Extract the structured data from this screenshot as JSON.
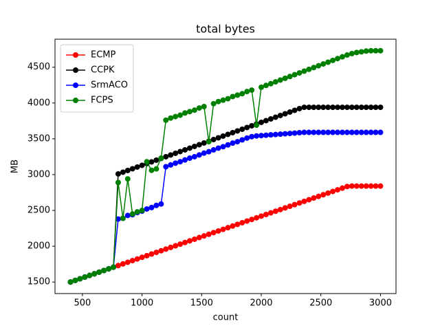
{
  "chart_data": {
    "type": "line",
    "title": "total bytes",
    "x_label": "count",
    "y_label": "MB",
    "x": [
      400,
      440,
      480,
      520,
      560,
      600,
      640,
      680,
      720,
      760,
      800,
      840,
      880,
      920,
      960,
      1000,
      1040,
      1080,
      1120,
      1160,
      1200,
      1240,
      1280,
      1320,
      1360,
      1400,
      1440,
      1480,
      1520,
      1560,
      1600,
      1640,
      1680,
      1720,
      1760,
      1800,
      1840,
      1880,
      1920,
      1960,
      2000,
      2040,
      2080,
      2120,
      2160,
      2200,
      2240,
      2280,
      2320,
      2360,
      2400,
      2440,
      2480,
      2520,
      2560,
      2600,
      2640,
      2680,
      2720,
      2760,
      2800,
      2840,
      2880,
      2920,
      2960,
      3000
    ],
    "series": [
      {
        "name": "ECMP",
        "color": "#ff0000",
        "values": [
          1500,
          1523,
          1546,
          1569,
          1592,
          1615,
          1638,
          1661,
          1684,
          1707,
          1730,
          1753,
          1776,
          1799,
          1822,
          1845,
          1868,
          1891,
          1914,
          1937,
          1960,
          1983,
          2006,
          2029,
          2052,
          2075,
          2098,
          2121,
          2144,
          2167,
          2190,
          2213,
          2236,
          2259,
          2282,
          2305,
          2328,
          2351,
          2374,
          2397,
          2420,
          2443,
          2466,
          2489,
          2512,
          2535,
          2558,
          2581,
          2604,
          2627,
          2650,
          2673,
          2696,
          2719,
          2742,
          2765,
          2788,
          2811,
          2834,
          2840,
          2840,
          2840,
          2840,
          2840,
          2840,
          2840
        ]
      },
      {
        "name": "CCPK",
        "color": "#000000",
        "values": [
          1500,
          1523,
          1546,
          1569,
          1592,
          1615,
          1638,
          1661,
          1684,
          1707,
          3010,
          3034,
          3058,
          3082,
          3106,
          3130,
          3154,
          3178,
          3202,
          3226,
          3250,
          3274,
          3298,
          3322,
          3346,
          3370,
          3394,
          3418,
          3442,
          3466,
          3490,
          3514,
          3538,
          3562,
          3586,
          3610,
          3634,
          3658,
          3682,
          3706,
          3730,
          3754,
          3778,
          3802,
          3826,
          3850,
          3874,
          3898,
          3922,
          3940,
          3940,
          3940,
          3940,
          3940,
          3940,
          3940,
          3940,
          3940,
          3940,
          3940,
          3940,
          3940,
          3940,
          3940,
          3940,
          3940
        ]
      },
      {
        "name": "SrmACO",
        "color": "#0000ff",
        "values": [
          1500,
          1523,
          1546,
          1569,
          1592,
          1615,
          1638,
          1661,
          1684,
          1707,
          2380,
          2390,
          2430,
          2440,
          2470,
          2490,
          2520,
          2540,
          2570,
          2590,
          3110,
          3135,
          3160,
          3180,
          3205,
          3230,
          3250,
          3275,
          3300,
          3320,
          3345,
          3370,
          3390,
          3415,
          3440,
          3460,
          3485,
          3510,
          3530,
          3540,
          3545,
          3550,
          3555,
          3560,
          3565,
          3570,
          3575,
          3580,
          3585,
          3590,
          3590,
          3590,
          3590,
          3590,
          3590,
          3590,
          3590,
          3590,
          3590,
          3590,
          3590,
          3590,
          3590,
          3590,
          3590,
          3590
        ]
      },
      {
        "name": "FCPS",
        "color": "#008000",
        "values": [
          1500,
          1523,
          1546,
          1569,
          1592,
          1615,
          1638,
          1661,
          1684,
          1707,
          2890,
          2390,
          2940,
          2450,
          2480,
          2500,
          3180,
          3060,
          3080,
          3230,
          3760,
          3790,
          3810,
          3830,
          3860,
          3880,
          3900,
          3930,
          3950,
          3460,
          3990,
          4020,
          4040,
          4060,
          4090,
          4110,
          4130,
          4160,
          4180,
          3690,
          4220,
          4245,
          4270,
          4295,
          4320,
          4345,
          4370,
          4395,
          4420,
          4445,
          4470,
          4495,
          4520,
          4545,
          4570,
          4595,
          4620,
          4645,
          4670,
          4690,
          4705,
          4715,
          4725,
          4730,
          4730,
          4730
        ]
      }
    ],
    "xlim": [
      270,
      3130
    ],
    "ylim": [
      1339,
      4891
    ],
    "xticks": [
      500,
      1000,
      1500,
      2000,
      2500,
      3000
    ],
    "yticks": [
      1500,
      2000,
      2500,
      3000,
      3500,
      4000,
      4500
    ],
    "legend": "upper left",
    "grid": false
  }
}
